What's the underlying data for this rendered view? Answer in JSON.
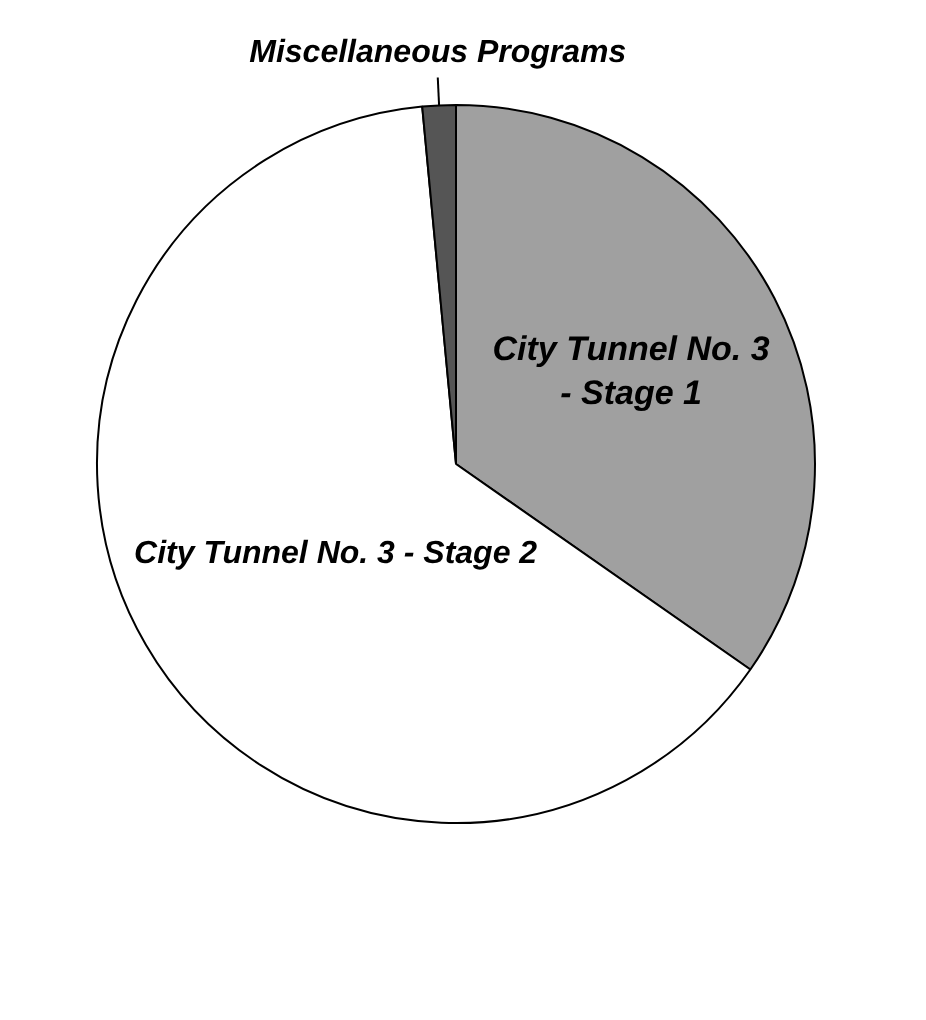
{
  "chart_data": {
    "type": "pie",
    "categories": [
      "City Tunnel No. 3 - Stage 1",
      "City Tunnel No. 3 - Stage 2",
      "Miscellaneous Programs"
    ],
    "values": [
      34.7,
      63.8,
      1.5
    ],
    "colors": [
      "#a0a0a0",
      "#ffffff",
      "#555555"
    ],
    "legend": false
  }
}
